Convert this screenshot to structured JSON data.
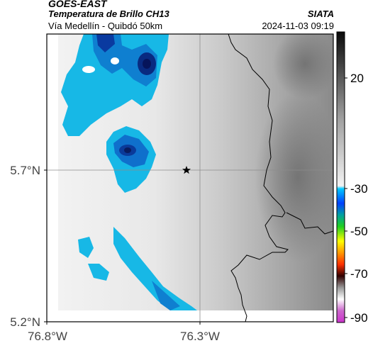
{
  "header": {
    "satellite": "GOES-EAST",
    "product": "Temperatura de Brillo CH13",
    "region": "Vía Medellín - Quibdó 50km",
    "org": "SIATA",
    "timestamp": "2024-11-03 09:19"
  },
  "map": {
    "lat_labels": [
      "5.7°N",
      "5.2°N"
    ],
    "lon_labels": [
      "76.8°W",
      "76.3°W"
    ],
    "marker_icon": "star-icon"
  },
  "colorbar": {
    "tick_labels": [
      "20",
      "-30",
      "-50",
      "-70",
      "-90"
    ],
    "stops": [
      "#111111",
      "#555555",
      "#9a9a9a",
      "#e6e6e6",
      "#00c8ff",
      "#0060ff",
      "#20d020",
      "#ffff00",
      "#ff3000",
      "#300000",
      "#ffffff",
      "#cc33cc"
    ]
  }
}
